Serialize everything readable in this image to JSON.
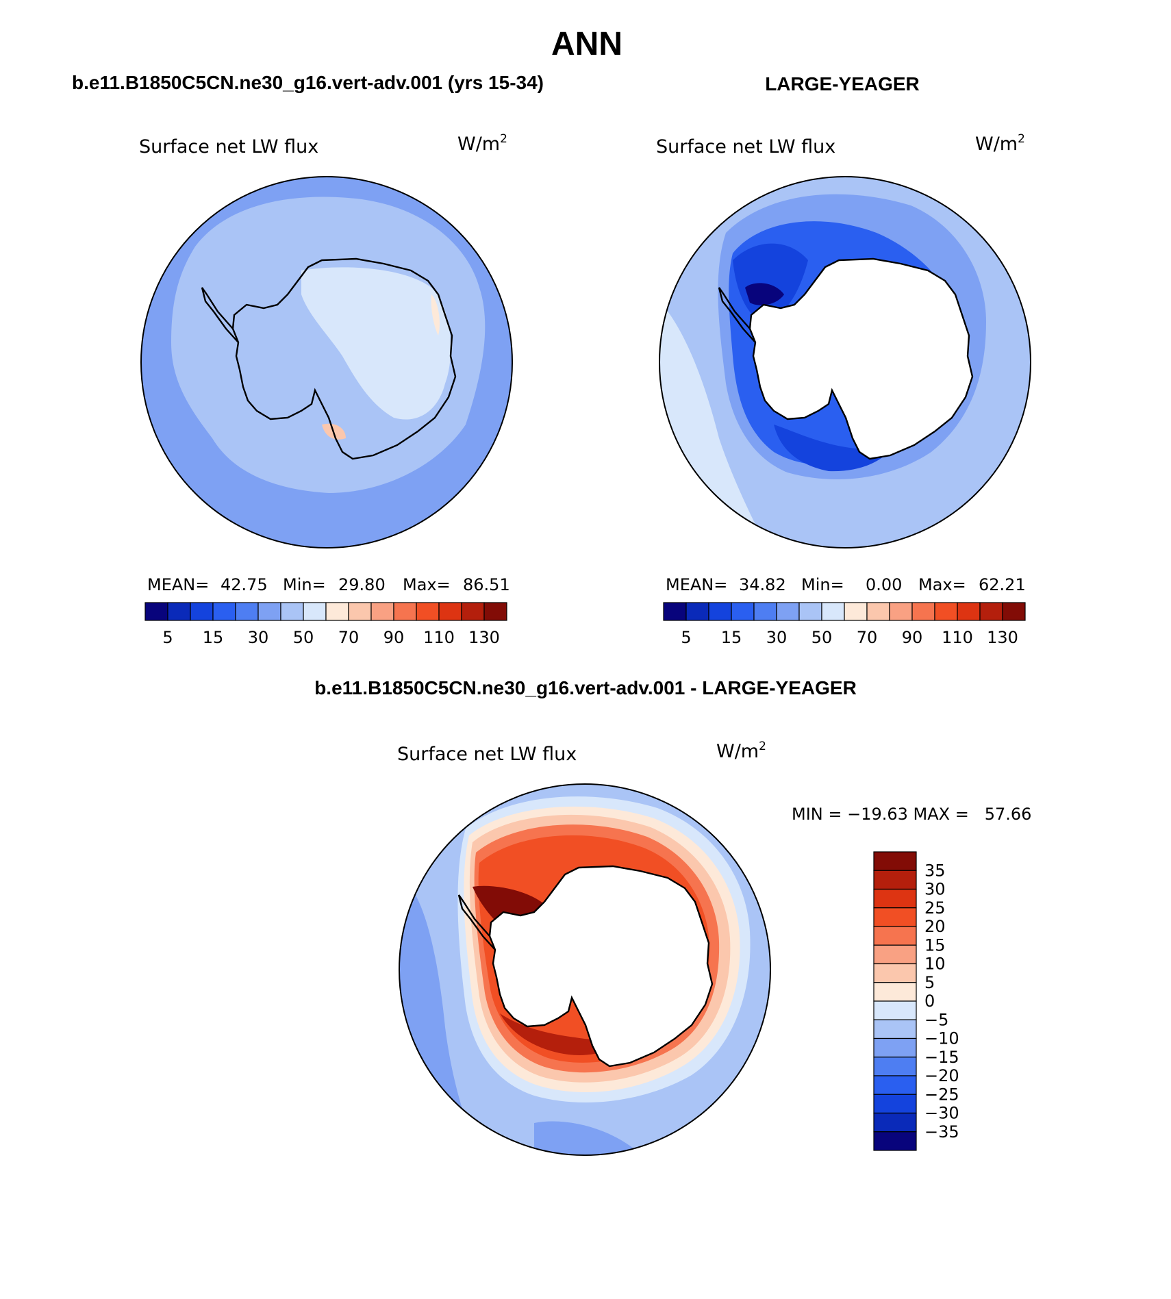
{
  "title": "ANN",
  "panels": [
    {
      "case_title": "b.e11.B1850C5CN.ne30_g16.vert-adv.001 (yrs 15-34)",
      "variable": "Surface net LW flux",
      "units_base": "W/m",
      "units_exp": "2",
      "stats": {
        "mean_label": "MEAN=",
        "mean": "42.75",
        "min_label": "Min=",
        "min": "29.80",
        "max_label": "Max=",
        "max": "86.51"
      },
      "colorbar": {
        "colors": [
          "#08047c",
          "#0a2ab9",
          "#1443dd",
          "#2a5ff0",
          "#4e7ef2",
          "#7ea1f3",
          "#aac4f6",
          "#d8e7fb",
          "#fde9d9",
          "#fbc7ad",
          "#f9a183",
          "#f6744f",
          "#f14f24",
          "#dd3412",
          "#b41f0c",
          "#820c06"
        ],
        "tick_labels": [
          "5",
          "15",
          "30",
          "50",
          "70",
          "90",
          "110",
          "130"
        ]
      }
    },
    {
      "case_title": "LARGE-YEAGER",
      "variable": "Surface net LW flux",
      "units_base": "W/m",
      "units_exp": "2",
      "stats": {
        "mean_label": "MEAN=",
        "mean": "34.82",
        "min_label": "Min=",
        "min": "0.00",
        "max_label": "Max=",
        "max": "62.21"
      },
      "colorbar": {
        "colors": [
          "#08047c",
          "#0a2ab9",
          "#1443dd",
          "#2a5ff0",
          "#4e7ef2",
          "#7ea1f3",
          "#aac4f6",
          "#d8e7fb",
          "#fde9d9",
          "#fbc7ad",
          "#f9a183",
          "#f6744f",
          "#f14f24",
          "#dd3412",
          "#b41f0c",
          "#820c06"
        ],
        "tick_labels": [
          "5",
          "15",
          "30",
          "50",
          "70",
          "90",
          "110",
          "130"
        ]
      }
    },
    {
      "case_title": "b.e11.B1850C5CN.ne30_g16.vert-adv.001 - LARGE-YEAGER",
      "variable": "Surface net LW flux",
      "units_base": "W/m",
      "units_exp": "2",
      "minmax_text": "MIN = −19.63 MAX =   57.66",
      "colorbar": {
        "colors": [
          "#820c06",
          "#b41f0c",
          "#dd3412",
          "#f14f24",
          "#f6744f",
          "#f9a183",
          "#fbc7ad",
          "#fde9d9",
          "#d8e7fb",
          "#aac4f6",
          "#7ea1f3",
          "#4e7ef2",
          "#2a5ff0",
          "#1443dd",
          "#0a2ab9",
          "#08047c"
        ],
        "tick_labels": [
          "35",
          "30",
          "25",
          "20",
          "15",
          "10",
          "5",
          "0",
          "−5",
          "−10",
          "−15",
          "−20",
          "−25",
          "−30",
          "−35"
        ]
      }
    }
  ],
  "map_colors": {
    "ocean_dark": "#7ea1f3",
    "ocean_mid": "#aac4f6",
    "ocean_light": "#d8e7fb",
    "strong_blue": "#2a5ff0",
    "deep_blue": "#1443dd",
    "darkest_blue": "#0a2ab9",
    "peach": "#fde9d9",
    "warm_light": "#fbc7ad",
    "warm_mid": "#f9a183",
    "orange": "#f6744f",
    "red_orange": "#f14f24",
    "red": "#dd3412",
    "dark_red": "#b41f0c",
    "maroon": "#820c06",
    "land_mask": "#ffffff",
    "coast": "#000000"
  }
}
